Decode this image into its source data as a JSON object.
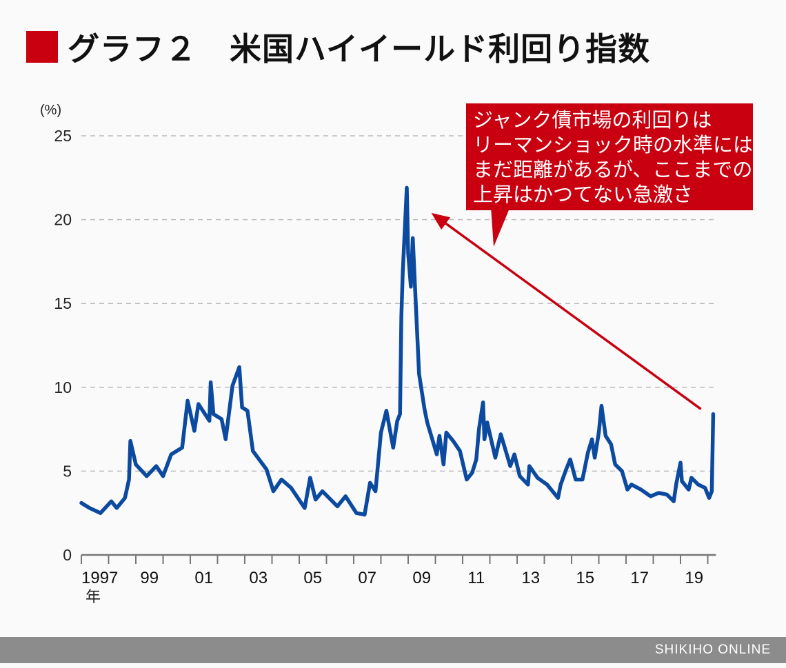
{
  "title": "グラフ２　米国ハイイールド利回り指数",
  "callout": {
    "lines": [
      "ジャンク債市場の利回りは",
      "リーマンショック時の水準には",
      "まだ距離があるが、ここまでの",
      "上昇はかつてない急激さ"
    ]
  },
  "footer": "SHIKIHO ONLINE",
  "colors": {
    "line": "#0c4aa0",
    "accent": "#c8000f",
    "grid": "#bbbbbb",
    "footer": "#8c8c8c"
  },
  "chart_data": {
    "type": "line",
    "title": "米国ハイイールド利回り指数",
    "ylabel": "(%)",
    "xlabel_unit": "年",
    "ylim": [
      0,
      25
    ],
    "xlim": [
      1997,
      2020.3
    ],
    "grid": true,
    "yticks": [
      0,
      5,
      10,
      15,
      20,
      25
    ],
    "xtick_labels": [
      {
        "year": 1997,
        "label": "1997"
      },
      {
        "year": 1999,
        "label": "99"
      },
      {
        "year": 2001,
        "label": "01"
      },
      {
        "year": 2003,
        "label": "03"
      },
      {
        "year": 2005,
        "label": "05"
      },
      {
        "year": 2007,
        "label": "07"
      },
      {
        "year": 2009,
        "label": "09"
      },
      {
        "year": 2011,
        "label": "11"
      },
      {
        "year": 2013,
        "label": "13"
      },
      {
        "year": 2015,
        "label": "15"
      },
      {
        "year": 2017,
        "label": "17"
      },
      {
        "year": 2019,
        "label": "19"
      }
    ],
    "series": [
      {
        "points": [
          [
            1997.0,
            3.1
          ],
          [
            1997.3,
            2.8
          ],
          [
            1997.7,
            2.5
          ],
          [
            1998.1,
            3.2
          ],
          [
            1998.3,
            2.8
          ],
          [
            1998.6,
            3.4
          ],
          [
            1998.75,
            4.5
          ],
          [
            1998.8,
            6.8
          ],
          [
            1999.0,
            5.4
          ],
          [
            1999.4,
            4.7
          ],
          [
            1999.75,
            5.3
          ],
          [
            2000.0,
            4.7
          ],
          [
            2000.3,
            6.0
          ],
          [
            2000.7,
            6.4
          ],
          [
            2000.9,
            9.2
          ],
          [
            2001.15,
            7.4
          ],
          [
            2001.3,
            9.0
          ],
          [
            2001.7,
            8.0
          ],
          [
            2001.75,
            10.3
          ],
          [
            2001.85,
            8.4
          ],
          [
            2002.15,
            8.1
          ],
          [
            2002.3,
            6.9
          ],
          [
            2002.55,
            10.1
          ],
          [
            2002.8,
            11.2
          ],
          [
            2002.9,
            8.8
          ],
          [
            2003.1,
            8.6
          ],
          [
            2003.3,
            6.2
          ],
          [
            2003.8,
            5.1
          ],
          [
            2004.05,
            3.8
          ],
          [
            2004.35,
            4.5
          ],
          [
            2004.7,
            4.0
          ],
          [
            2005.2,
            2.8
          ],
          [
            2005.4,
            4.6
          ],
          [
            2005.6,
            3.3
          ],
          [
            2005.85,
            3.8
          ],
          [
            2006.4,
            2.9
          ],
          [
            2006.7,
            3.5
          ],
          [
            2007.1,
            2.5
          ],
          [
            2007.4,
            2.4
          ],
          [
            2007.6,
            4.3
          ],
          [
            2007.8,
            3.8
          ],
          [
            2008.0,
            7.3
          ],
          [
            2008.2,
            8.6
          ],
          [
            2008.45,
            6.4
          ],
          [
            2008.6,
            8.0
          ],
          [
            2008.7,
            8.4
          ],
          [
            2008.75,
            14.2
          ],
          [
            2008.8,
            16.8
          ],
          [
            2008.95,
            21.9
          ],
          [
            2009.0,
            18.0
          ],
          [
            2009.1,
            16.0
          ],
          [
            2009.17,
            18.9
          ],
          [
            2009.27,
            15.3
          ],
          [
            2009.4,
            10.8
          ],
          [
            2009.6,
            8.7
          ],
          [
            2009.7,
            7.9
          ],
          [
            2010.05,
            6.0
          ],
          [
            2010.15,
            7.1
          ],
          [
            2010.3,
            5.4
          ],
          [
            2010.4,
            7.3
          ],
          [
            2010.65,
            6.8
          ],
          [
            2010.9,
            6.2
          ],
          [
            2011.15,
            4.5
          ],
          [
            2011.35,
            4.9
          ],
          [
            2011.5,
            5.7
          ],
          [
            2011.6,
            7.5
          ],
          [
            2011.75,
            9.1
          ],
          [
            2011.8,
            6.9
          ],
          [
            2011.9,
            7.9
          ],
          [
            2012.2,
            5.8
          ],
          [
            2012.4,
            7.2
          ],
          [
            2012.75,
            5.3
          ],
          [
            2012.9,
            6.0
          ],
          [
            2013.1,
            4.7
          ],
          [
            2013.4,
            4.2
          ],
          [
            2013.45,
            5.3
          ],
          [
            2013.75,
            4.6
          ],
          [
            2014.1,
            4.2
          ],
          [
            2014.5,
            3.4
          ],
          [
            2014.6,
            4.2
          ],
          [
            2014.8,
            5.1
          ],
          [
            2014.95,
            5.7
          ],
          [
            2015.15,
            4.5
          ],
          [
            2015.4,
            4.5
          ],
          [
            2015.6,
            6.1
          ],
          [
            2015.75,
            6.9
          ],
          [
            2015.85,
            5.8
          ],
          [
            2016.0,
            7.3
          ],
          [
            2016.1,
            8.9
          ],
          [
            2016.25,
            7.1
          ],
          [
            2016.45,
            6.6
          ],
          [
            2016.6,
            5.4
          ],
          [
            2016.85,
            5.0
          ],
          [
            2017.05,
            3.9
          ],
          [
            2017.2,
            4.2
          ],
          [
            2017.55,
            3.9
          ],
          [
            2017.9,
            3.5
          ],
          [
            2018.2,
            3.7
          ],
          [
            2018.5,
            3.6
          ],
          [
            2018.75,
            3.2
          ],
          [
            2018.85,
            4.3
          ],
          [
            2019.0,
            5.5
          ],
          [
            2019.05,
            4.4
          ],
          [
            2019.3,
            3.9
          ],
          [
            2019.4,
            4.6
          ],
          [
            2019.65,
            4.2
          ],
          [
            2019.9,
            4.0
          ],
          [
            2020.05,
            3.4
          ],
          [
            2020.15,
            3.8
          ],
          [
            2020.2,
            8.4
          ]
        ]
      }
    ],
    "annotation": {
      "type": "arrow",
      "from": [
        2019.75,
        8.7
      ],
      "to": [
        2009.85,
        20.4
      ]
    }
  }
}
